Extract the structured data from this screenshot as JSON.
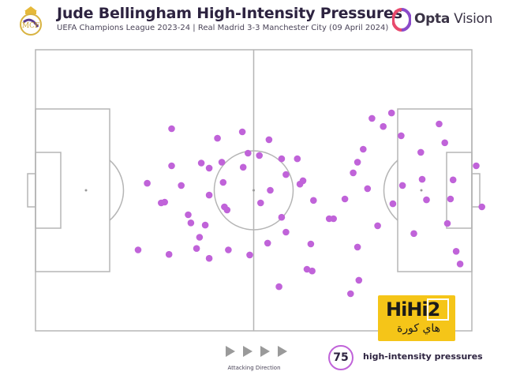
{
  "header": {
    "title": "Jude Bellingham High-Intensity Pressures",
    "subtitle": "UEFA Champions League 2023-24 | Real Madrid 3-3 Manchester City (09 April 2024)",
    "logo_text_bold": "Opta",
    "logo_text_light": " Vision",
    "crest_icon": "real-madrid-crest-icon",
    "opta_icon": "opta-logo-icon"
  },
  "footer": {
    "direction_label": "Attacking Direction",
    "count": "75",
    "count_label": "high-intensity pressures",
    "arrow_icon": "triangle-right-icon"
  },
  "watermark": {
    "brand": "HiHi2",
    "arabic": "هاي كورة"
  },
  "colors": {
    "dot": "#c063d9",
    "pitch_line": "#b5b5b5",
    "title": "#2d2340",
    "watermark": "#f5c518"
  },
  "chart_data": {
    "type": "scatter",
    "title": "Jude Bellingham High-Intensity Pressures",
    "xlim": [
      0,
      100
    ],
    "ylim": [
      0,
      100
    ],
    "x_direction": "left-to-right (attacking)",
    "y_direction": "top-to-bottom",
    "series": [
      {
        "name": "high-intensity pressures",
        "points": [
          [
            23.5,
            71.2
          ],
          [
            31.2,
            28.1
          ],
          [
            31.2,
            41.3
          ],
          [
            29.6,
            54.2
          ],
          [
            33.4,
            48.3
          ],
          [
            36.9,
            70.7
          ],
          [
            35.0,
            58.7
          ],
          [
            37.6,
            66.7
          ],
          [
            38.0,
            40.3
          ],
          [
            38.9,
            62.4
          ],
          [
            39.8,
            74.2
          ],
          [
            39.8,
            42.1
          ],
          [
            41.7,
            31.5
          ],
          [
            42.7,
            40.0
          ],
          [
            43.3,
            55.9
          ],
          [
            43.9,
            57.0
          ],
          [
            44.2,
            71.2
          ],
          [
            47.4,
            29.2
          ],
          [
            48.7,
            36.8
          ],
          [
            51.6,
            54.5
          ],
          [
            53.8,
            50.0
          ],
          [
            53.5,
            32.0
          ],
          [
            53.2,
            68.8
          ],
          [
            49.1,
            73.0
          ],
          [
            51.3,
            37.6
          ],
          [
            57.4,
            64.9
          ],
          [
            60.6,
            47.8
          ],
          [
            62.2,
            78.1
          ],
          [
            63.4,
            78.7
          ],
          [
            63.1,
            69.1
          ],
          [
            67.3,
            60.1
          ],
          [
            68.3,
            60.1
          ],
          [
            70.9,
            53.1
          ],
          [
            72.2,
            86.8
          ],
          [
            73.8,
            70.2
          ],
          [
            74.1,
            82.0
          ],
          [
            75.1,
            35.4
          ],
          [
            76.1,
            49.4
          ],
          [
            77.1,
            24.4
          ],
          [
            78.4,
            62.6
          ],
          [
            79.7,
            27.3
          ],
          [
            81.6,
            22.5
          ],
          [
            81.9,
            54.8
          ],
          [
            83.8,
            30.6
          ],
          [
            86.7,
            65.4
          ],
          [
            88.6,
            46.1
          ],
          [
            89.6,
            53.4
          ],
          [
            88.3,
            36.5
          ],
          [
            85.4,
            89.0
          ],
          [
            84.1,
            48.3
          ],
          [
            56.4,
            38.8
          ],
          [
            57.4,
            44.4
          ],
          [
            56.4,
            59.6
          ],
          [
            55.8,
            84.3
          ],
          [
            60.0,
            38.8
          ],
          [
            61.3,
            46.6
          ],
          [
            72.8,
            43.8
          ],
          [
            73.8,
            40.0
          ],
          [
            92.5,
            26.4
          ],
          [
            93.8,
            33.1
          ],
          [
            95.7,
            46.3
          ],
          [
            95.1,
            53.1
          ],
          [
            97.3,
            76.2
          ],
          [
            94.4,
            61.8
          ],
          [
            101.0,
            41.3
          ],
          [
            102.3,
            55.9
          ],
          [
            96.4,
            71.7
          ],
          [
            25.6,
            47.5
          ],
          [
            28.8,
            54.5
          ],
          [
            30.6,
            72.8
          ],
          [
            39.8,
            51.7
          ],
          [
            35.6,
            61.6
          ],
          [
            43.0,
            47.2
          ],
          [
            47.6,
            41.8
          ],
          [
            63.7,
            53.6
          ]
        ]
      }
    ]
  }
}
